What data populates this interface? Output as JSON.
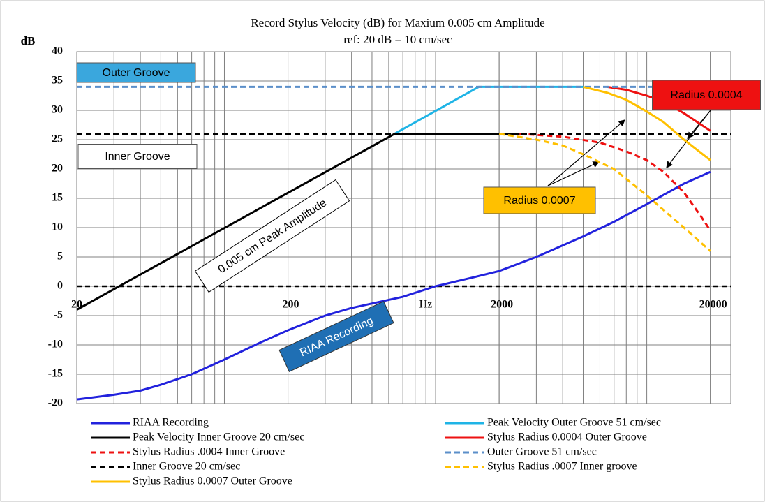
{
  "chart_data": {
    "type": "line",
    "title": "Record Stylus Velocity (dB) for Maxium 0.005 cm Amplitude",
    "subtitle": "ref:  20 dB = 10 cm/sec",
    "y_label": "dB",
    "x_label": "Hz",
    "xscale": "log",
    "xlim": [
      20,
      25000
    ],
    "xticks": [
      20,
      200,
      2000,
      20000
    ],
    "minor_grid": true,
    "ylim": [
      -20,
      40
    ],
    "yticks": [
      -20,
      -15,
      -10,
      -5,
      0,
      5,
      10,
      15,
      20,
      25,
      30,
      35,
      40
    ],
    "grid": true,
    "zero_line": "dashed",
    "legend": "bottom",
    "series": [
      {
        "name": "RIAA Recording",
        "color": "#2222dd",
        "dash": false,
        "x": [
          20,
          30,
          40,
          50,
          70,
          100,
          150,
          200,
          300,
          400,
          700,
          1000,
          1500,
          2000,
          3000,
          5000,
          7000,
          10000,
          15000,
          20000
        ],
        "values": [
          -19.3,
          -18.5,
          -17.8,
          -16.8,
          -15,
          -12.5,
          -9.5,
          -7.5,
          -5,
          -3.7,
          -1.8,
          0,
          1.5,
          2.6,
          5,
          8.5,
          11,
          14,
          17.5,
          19.5
        ]
      },
      {
        "name": "Peak Velocity Outer Groove 51 cm/sec",
        "color": "#1fb4e6",
        "dash": false,
        "x": [
          640,
          1600,
          5000
        ],
        "values": [
          26,
          34,
          34
        ]
      },
      {
        "name": "Peak Velocity Inner Groove 20 cm/sec",
        "color": "#000000",
        "dash": false,
        "x": [
          20,
          640,
          2500
        ],
        "values": [
          -4,
          26,
          26
        ]
      },
      {
        "name": "Stylus Radius 0.0004 Outer Groove",
        "color": "#ee1111",
        "dash": false,
        "x": [
          6500,
          8000,
          10000,
          12000,
          15000,
          20000
        ],
        "values": [
          34,
          33.5,
          32.5,
          31.5,
          29.5,
          26.5
        ]
      },
      {
        "name": "Stylus Radius .0004 Inner Groove",
        "color": "#ee1111",
        "dash": true,
        "x": [
          2500,
          4000,
          6000,
          8000,
          10000,
          12000,
          15000,
          18000,
          20000
        ],
        "values": [
          26,
          25.5,
          24.5,
          23,
          21.5,
          19.5,
          16,
          12,
          9.5
        ]
      },
      {
        "name": "Outer Groove 51 cm/sec",
        "color": "#5b8fc9",
        "dash": true,
        "x": [
          20,
          25000
        ],
        "values": [
          34,
          34
        ]
      },
      {
        "name": "Inner Groove 20 cm/sec",
        "color": "#000000",
        "dash": true,
        "x": [
          20,
          25000
        ],
        "values": [
          26,
          26
        ]
      },
      {
        "name": "Stylus Radius .0007 Inner groove",
        "color": "#ffc000",
        "dash": true,
        "x": [
          2000,
          3000,
          4000,
          5000,
          7000,
          10000,
          12000,
          15000,
          20000
        ],
        "values": [
          26,
          25,
          24,
          22.5,
          20,
          15.5,
          13,
          10,
          6
        ]
      },
      {
        "name": "Stylus Radius 0.0007 Outer Groove",
        "color": "#ffc000",
        "dash": false,
        "x": [
          5000,
          6500,
          8000,
          10000,
          12000,
          15000,
          20000
        ],
        "values": [
          34,
          33,
          31.8,
          29.8,
          28,
          25,
          21.5
        ]
      }
    ],
    "annotations": [
      "Outer Groove",
      "Inner Groove",
      "0.005 cm Peak Amplitude",
      "RIAA Recording",
      "Radius 0.0007",
      "Radius 0.0004"
    ]
  }
}
